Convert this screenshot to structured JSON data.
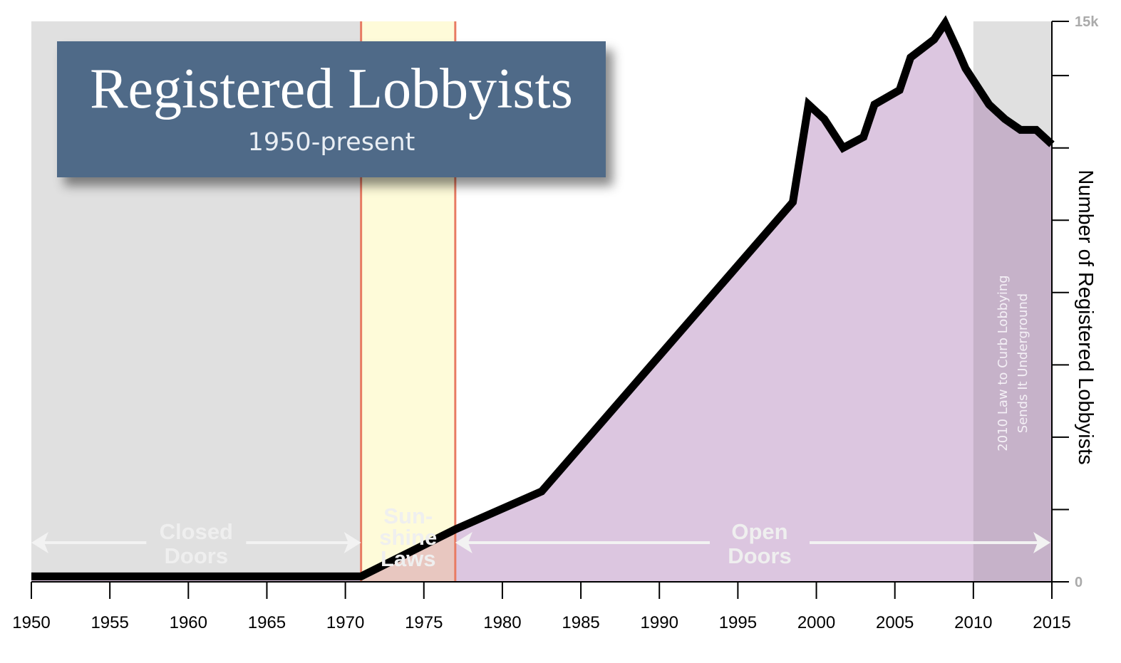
{
  "chart_data": {
    "type": "area",
    "title": "Registered Lobbyists",
    "subtitle": "1950-present",
    "xlabel": "",
    "ylabel": "Number of Registered Lobbyists",
    "xlim": [
      1950,
      2015
    ],
    "ylim": [
      0,
      15500
    ],
    "x_ticks": [
      1950,
      1955,
      1960,
      1965,
      1970,
      1975,
      1980,
      1985,
      1990,
      1995,
      2000,
      2005,
      2010,
      2015
    ],
    "y_tick_values": [
      0,
      2000,
      4000,
      6000,
      8000,
      10000,
      12000,
      14000,
      15500
    ],
    "y_tick_labels": [
      {
        "value": 0,
        "label": "0"
      },
      {
        "value": 15500,
        "label": "15k"
      }
    ],
    "grid": false,
    "series": [
      {
        "name": "",
        "x": [
          1950,
          1971,
          1977,
          1982.5,
          1998.5,
          1999.5,
          2000.5,
          2001.7,
          2003,
          2003.7,
          2005.3,
          2006,
          2007.5,
          2008.2,
          2009,
          2009.5,
          2011,
          2012,
          2013,
          2014,
          2015
        ],
        "y": [
          150,
          150,
          1450,
          2500,
          10500,
          13200,
          12800,
          12000,
          12300,
          13200,
          13600,
          14500,
          15000,
          15450,
          14700,
          14200,
          13200,
          12800,
          12500,
          12500,
          12100
        ]
      }
    ],
    "bands": [
      {
        "from": 1950,
        "to": 1971,
        "color": "#e0e0e0",
        "label_lines": [
          "Closed",
          "Doors"
        ]
      },
      {
        "from": 1971,
        "to": 1977,
        "color": "#fefbd9",
        "label_lines": [
          "Sun-",
          "shine",
          "Laws"
        ]
      },
      {
        "from": 1977,
        "to": 2015,
        "color": "#ffffff",
        "label_lines": [
          "Open",
          "Doors"
        ]
      },
      {
        "from": 2010,
        "to": 2015,
        "color": "#e0e0e0",
        "label_lines": [
          "2010 Law to Curb Lobbying",
          "Sends It Underground"
        ]
      }
    ],
    "colors": {
      "area_fill": "#dcc6e0",
      "line": "#000000",
      "boundary_lines": "#e87b63",
      "overlay_2010": "#c6b2c9",
      "overlay_sunshine": "#e8c7c0",
      "title_box": "#4f6a88"
    }
  }
}
